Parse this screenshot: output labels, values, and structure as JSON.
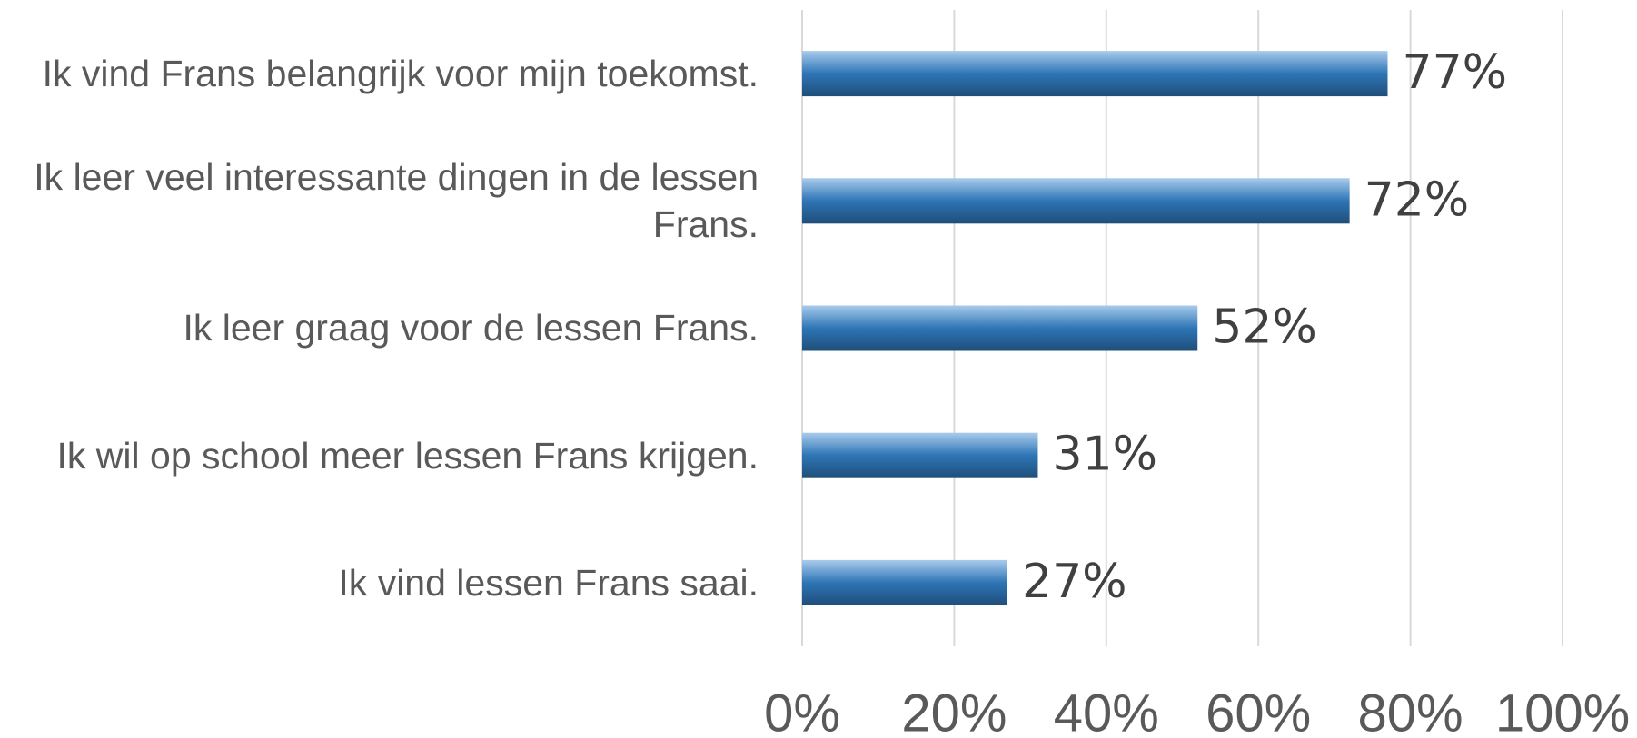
{
  "chart_data": {
    "type": "bar",
    "orientation": "horizontal",
    "categories": [
      "Ik vind Frans belangrijk voor mijn toekomst.",
      "Ik leer veel interessante dingen in de lessen Frans.",
      "Ik leer graag voor de lessen Frans.",
      "Ik wil op school meer lessen Frans krijgen.",
      "Ik vind lessen Frans saai."
    ],
    "values": [
      77,
      72,
      52,
      31,
      27
    ],
    "value_labels": [
      "77%",
      "72%",
      "52%",
      "31%",
      "27%"
    ],
    "color": "#2e75b6",
    "xlim": [
      0,
      100
    ],
    "xticks": [
      {
        "value": 0,
        "label": "0%"
      },
      {
        "value": 20,
        "label": "20%"
      },
      {
        "value": 40,
        "label": "40%"
      },
      {
        "value": 60,
        "label": "60%"
      },
      {
        "value": 80,
        "label": "80%"
      },
      {
        "value": 100,
        "label": "100%"
      }
    ],
    "grid": true
  }
}
